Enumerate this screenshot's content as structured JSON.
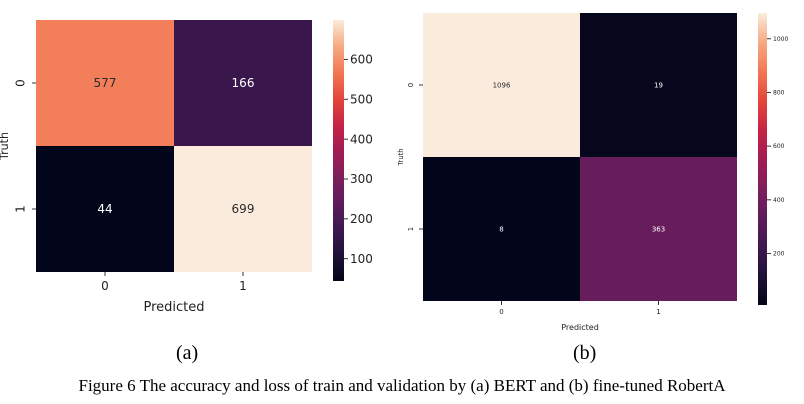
{
  "caption": "Figure 6 The accuracy and loss of train and validation by (a) BERT and (b) fine-tuned RobertA",
  "chart_data": [
    {
      "type": "heatmap",
      "panel_label": "(a)",
      "xlabel": "Predicted",
      "ylabel": "Truth",
      "x_categories": [
        "0",
        "1"
      ],
      "y_categories": [
        "0",
        "1"
      ],
      "values": [
        [
          577,
          166
        ],
        [
          44,
          699
        ]
      ],
      "colorbar": {
        "min": 44,
        "max": 699,
        "ticks": [
          100,
          200,
          300,
          400,
          500,
          600
        ]
      },
      "colormap": "rocket"
    },
    {
      "type": "heatmap",
      "panel_label": "(b)",
      "xlabel": "Predicted",
      "ylabel": "Truth",
      "x_categories": [
        "0",
        "1"
      ],
      "y_categories": [
        "0",
        "1"
      ],
      "values": [
        [
          1096,
          19
        ],
        [
          8,
          363
        ]
      ],
      "colorbar": {
        "min": 8,
        "max": 1096,
        "ticks": [
          200,
          400,
          600,
          800,
          1000
        ]
      },
      "colormap": "rocket"
    }
  ]
}
